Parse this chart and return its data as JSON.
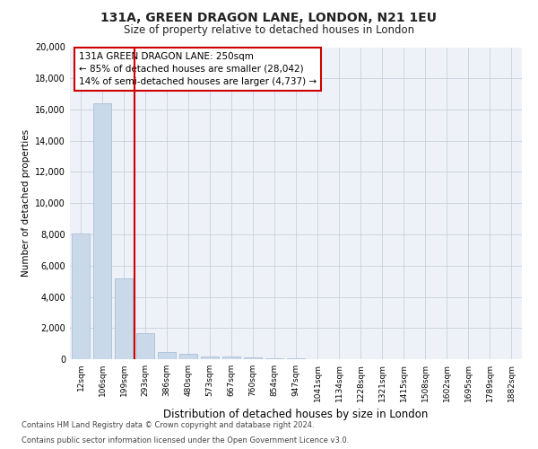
{
  "title_line1": "131A, GREEN DRAGON LANE, LONDON, N21 1EU",
  "title_line2": "Size of property relative to detached houses in London",
  "xlabel": "Distribution of detached houses by size in London",
  "ylabel": "Number of detached properties",
  "categories": [
    "12sqm",
    "106sqm",
    "199sqm",
    "293sqm",
    "386sqm",
    "480sqm",
    "573sqm",
    "667sqm",
    "760sqm",
    "854sqm",
    "947sqm",
    "1041sqm",
    "1134sqm",
    "1228sqm",
    "1321sqm",
    "1415sqm",
    "1508sqm",
    "1602sqm",
    "1695sqm",
    "1789sqm",
    "1882sqm"
  ],
  "values": [
    8050,
    16400,
    5200,
    1650,
    480,
    370,
    200,
    160,
    110,
    70,
    40,
    0,
    0,
    0,
    0,
    0,
    0,
    0,
    0,
    0,
    0
  ],
  "bar_color": "#c9d9ea",
  "bar_edge_color": "#a0b8d0",
  "vline_x": 2.5,
  "vline_color": "#cc0000",
  "annotation_text": "131A GREEN DRAGON LANE: 250sqm\n← 85% of detached houses are smaller (28,042)\n14% of semi-detached houses are larger (4,737) →",
  "annotation_box_color": "#ffffff",
  "annotation_box_edge_color": "#cc0000",
  "ylim": [
    0,
    20000
  ],
  "yticks": [
    0,
    2000,
    4000,
    6000,
    8000,
    10000,
    12000,
    14000,
    16000,
    18000,
    20000
  ],
  "grid_color": "#c8d0dc",
  "footer_line1": "Contains HM Land Registry data © Crown copyright and database right 2024.",
  "footer_line2": "Contains public sector information licensed under the Open Government Licence v3.0.",
  "bg_color": "#eef2f8",
  "fig_bg_color": "#ffffff"
}
